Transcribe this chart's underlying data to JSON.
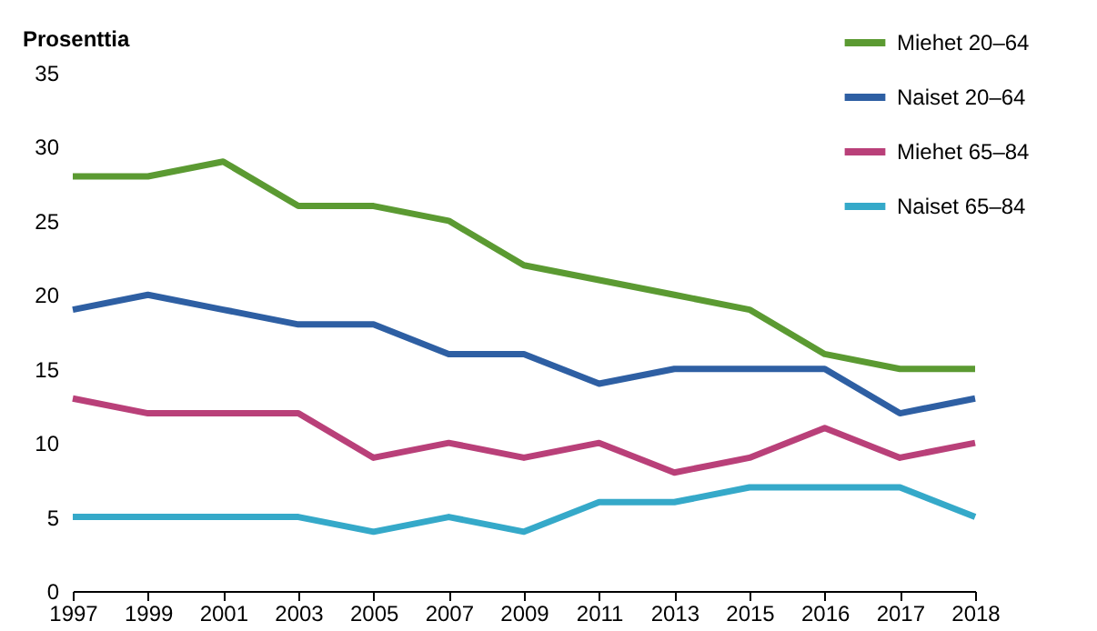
{
  "chart_data": {
    "type": "line",
    "ylabel": "Prosenttia",
    "categories": [
      "1997",
      "1999",
      "2001",
      "2003",
      "2005",
      "2007",
      "2009",
      "2011",
      "2013",
      "2015",
      "2016",
      "2017",
      "2018"
    ],
    "series": [
      {
        "name": "Miehet 20–64",
        "color": "#5b9a32",
        "values": [
          28,
          28,
          29,
          26,
          26,
          25,
          22,
          21,
          20,
          19,
          16,
          15,
          15
        ]
      },
      {
        "name": "Naiset 20–64",
        "color": "#2e5fa3",
        "values": [
          19,
          20,
          19,
          18,
          18,
          16,
          16,
          14,
          15,
          15,
          15,
          12,
          13
        ]
      },
      {
        "name": "Miehet 65–84",
        "color": "#b94079",
        "values": [
          13,
          12,
          12,
          12,
          9,
          10,
          9,
          10,
          8,
          9,
          11,
          9,
          10
        ]
      },
      {
        "name": "Naiset 65–84",
        "color": "#35a9c9",
        "values": [
          5,
          5,
          5,
          5,
          4,
          5,
          4,
          6,
          6,
          7,
          7,
          7,
          5
        ]
      }
    ],
    "ylim": [
      0,
      35
    ],
    "yticks": [
      0,
      5,
      10,
      15,
      20,
      25,
      30,
      35
    ],
    "grid": false,
    "legend": "top right",
    "marker": "none",
    "line_style": "solid"
  }
}
